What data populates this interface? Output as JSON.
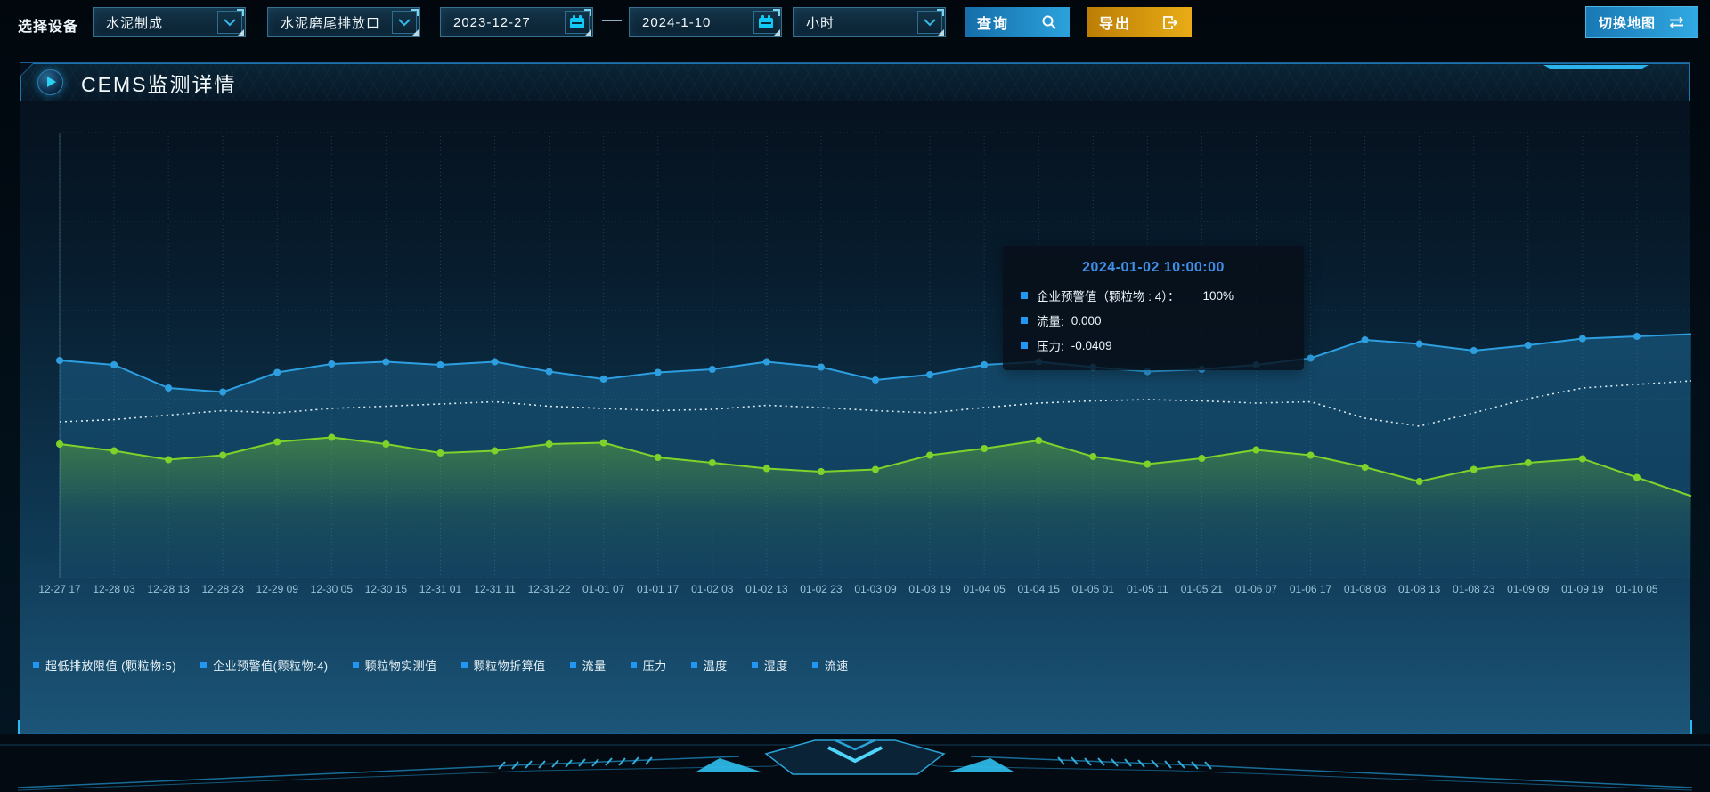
{
  "toolbar": {
    "device_label": "选择设备",
    "device_select": {
      "value": "水泥制成"
    },
    "outlet_select": {
      "value": "水泥磨尾排放口"
    },
    "date_start": "2023-12-27",
    "date_end": "2024-1-10",
    "interval_select": {
      "value": "小时"
    },
    "query_button": "查询",
    "export_button": "导出",
    "switch_map_button": "切换地图"
  },
  "panel": {
    "title": "CEMS监测详情"
  },
  "tooltip": {
    "title": "2024-01-02 10:00:00",
    "rows": [
      {
        "label": "企业预警值（颗粒物 : 4）：",
        "value": "100%"
      },
      {
        "label": "流量:",
        "value": "0.000"
      },
      {
        "label": "压力:",
        "value": "-0.0409"
      }
    ]
  },
  "legend": [
    "超低排放限值 (颗粒物:5)",
    "企业预警值(颗粒物:4)",
    "颗粒物实测值",
    "颗粒物折算值",
    "流量",
    "压力",
    "温度",
    "湿度",
    "流速"
  ],
  "colors": {
    "accent_cyan": "#2bb3ee",
    "line_blue": "#2d9fe0",
    "line_green": "#7ed32a",
    "limit_white": "#e6f3f7",
    "query_blue": "#2196d0",
    "export_amber": "#dd9a10",
    "tooltip_title_blue": "#3f8fe8",
    "legend_marker": "#2196f3"
  },
  "chart_data": {
    "type": "line",
    "title": "CEMS监测详情",
    "xlabel": "",
    "ylabel": "",
    "y_axis_visible": false,
    "ylim": [
      0,
      100
    ],
    "grid": "dotted",
    "legend_position": "bottom",
    "x_labels": [
      "12-27 17",
      "12-28 03",
      "12-28 13",
      "12-28 23",
      "12-29 09",
      "12-30 05",
      "12-30 15",
      "12-31 01",
      "12-31 11",
      "12-31-22",
      "01-01 07",
      "01-01 17",
      "01-02 03",
      "01-02 13",
      "01-02 23",
      "01-03 09",
      "01-03 19",
      "01-04 05",
      "01-04 15",
      "01-05 01",
      "01-05 11",
      "01-05 21",
      "01-06 07",
      "01-06 17",
      "01-08 03",
      "01-08 13",
      "01-08 23",
      "01-09 09",
      "01-09 19",
      "01-10 05"
    ],
    "series": [
      {
        "name": "流量",
        "color": "#2d9fe0",
        "style": "solid",
        "markers": true,
        "area": true,
        "values_pct": [
          48.8,
          47.8,
          42.6,
          41.7,
          46.1,
          48.0,
          48.5,
          47.8,
          48.5,
          46.3,
          44.6,
          46.1,
          46.8,
          48.5,
          47.3,
          44.4,
          45.6,
          47.8,
          48.5,
          47.3,
          46.3,
          46.8,
          47.8,
          49.3,
          53.4,
          52.5,
          51.0,
          52.2,
          53.7,
          54.2
        ]
      },
      {
        "name": "企业预警值(颗粒物:4)",
        "color": "#e6f3f7",
        "style": "dotted",
        "markers": false,
        "area": false,
        "values_pct": [
          35.0,
          35.5,
          36.5,
          37.5,
          37.0,
          38.0,
          38.5,
          39.0,
          39.5,
          38.5,
          38.0,
          37.5,
          37.8,
          38.7,
          38.2,
          37.5,
          37.0,
          38.2,
          39.2,
          39.7,
          40.0,
          39.7,
          39.2,
          39.5,
          35.8,
          34.0,
          37.0,
          40.2,
          42.6,
          43.4
        ]
      },
      {
        "name": "压力",
        "color": "#7ed32a",
        "style": "solid",
        "markers": true,
        "area": true,
        "values_pct": [
          30.0,
          28.5,
          26.5,
          27.5,
          30.5,
          31.5,
          30.0,
          28.0,
          28.5,
          30.0,
          30.3,
          27.0,
          25.8,
          24.5,
          23.8,
          24.3,
          27.5,
          29.0,
          30.8,
          27.2,
          25.5,
          26.8,
          28.7,
          27.5,
          24.8,
          21.6,
          24.3,
          25.8,
          26.7,
          22.5
        ]
      }
    ]
  }
}
